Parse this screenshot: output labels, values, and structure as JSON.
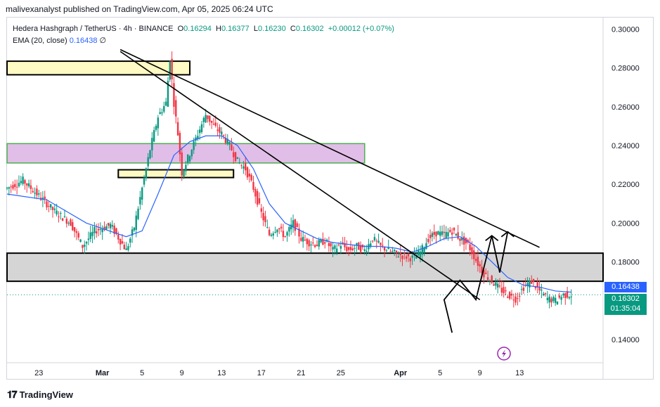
{
  "header": {
    "text": "malivexanalyst published on TradingView.com, Apr 05, 2025 06:24 UTC"
  },
  "legend": {
    "symbol": "Hedera Hashgraph / TetherUS · 4h · BINANCE",
    "open_label": "O",
    "open": "0.16294",
    "high_label": "H",
    "high": "0.16377",
    "low_label": "L",
    "low": "0.16230",
    "close_label": "C",
    "close": "0.16302",
    "change": "+0.00012 (+0.07%)",
    "ema_label": "EMA (20, close)",
    "ema_value": "0.16438",
    "ema_extra": "∅"
  },
  "price_tags": {
    "ema": "0.16438",
    "close": "0.16302",
    "countdown": "01:35:04"
  },
  "footer": {
    "brand": "TradingView"
  },
  "colors": {
    "up": "#089981",
    "down": "#f23645",
    "ema": "#2962ff",
    "axis": "#d1d4dc"
  },
  "chart_data": {
    "type": "candlestick",
    "y_ticks": [
      "0.30000",
      "0.28000",
      "0.26000",
      "0.24000",
      "0.22000",
      "0.20000",
      "0.18000",
      "0.14000"
    ],
    "x_ticks": [
      "23",
      "Mar",
      "5",
      "9",
      "13",
      "17",
      "21",
      "25",
      "Apr",
      "5",
      "9",
      "13"
    ],
    "ylim": [
      0.128,
      0.306
    ],
    "price_path": [
      [
        0,
        0.218
      ],
      [
        4,
        0.222
      ],
      [
        8,
        0.214
      ],
      [
        12,
        0.206
      ],
      [
        16,
        0.2
      ],
      [
        19,
        0.188
      ],
      [
        22,
        0.196
      ],
      [
        26,
        0.199
      ],
      [
        30,
        0.186
      ],
      [
        32,
        0.198
      ],
      [
        34,
        0.218
      ],
      [
        36,
        0.238
      ],
      [
        38,
        0.255
      ],
      [
        40,
        0.262
      ],
      [
        41,
        0.285
      ],
      [
        42,
        0.262
      ],
      [
        43,
        0.246
      ],
      [
        44,
        0.226
      ],
      [
        46,
        0.236
      ],
      [
        48,
        0.246
      ],
      [
        50,
        0.256
      ],
      [
        52,
        0.25
      ],
      [
        54,
        0.246
      ],
      [
        56,
        0.24
      ],
      [
        58,
        0.232
      ],
      [
        60,
        0.228
      ],
      [
        62,
        0.218
      ],
      [
        64,
        0.205
      ],
      [
        66,
        0.194
      ],
      [
        68,
        0.198
      ],
      [
        70,
        0.193
      ],
      [
        72,
        0.2
      ],
      [
        74,
        0.192
      ],
      [
        76,
        0.19
      ],
      [
        78,
        0.189
      ],
      [
        80,
        0.191
      ],
      [
        82,
        0.186
      ],
      [
        84,
        0.189
      ],
      [
        86,
        0.186
      ],
      [
        88,
        0.188
      ],
      [
        90,
        0.186
      ],
      [
        92,
        0.192
      ],
      [
        94,
        0.188
      ],
      [
        96,
        0.186
      ],
      [
        98,
        0.184
      ],
      [
        100,
        0.183
      ],
      [
        102,
        0.182
      ],
      [
        104,
        0.185
      ],
      [
        106,
        0.192
      ],
      [
        108,
        0.195
      ],
      [
        110,
        0.194
      ],
      [
        112,
        0.196
      ],
      [
        114,
        0.192
      ],
      [
        116,
        0.189
      ],
      [
        118,
        0.181
      ],
      [
        120,
        0.174
      ],
      [
        122,
        0.17
      ],
      [
        124,
        0.166
      ],
      [
        126,
        0.163
      ],
      [
        128,
        0.161
      ],
      [
        130,
        0.167
      ],
      [
        132,
        0.17
      ],
      [
        134,
        0.165
      ],
      [
        136,
        0.161
      ],
      [
        138,
        0.16
      ],
      [
        140,
        0.163
      ],
      [
        142,
        0.163
      ]
    ],
    "ema_path": [
      [
        0,
        0.215
      ],
      [
        10,
        0.212
      ],
      [
        20,
        0.2
      ],
      [
        30,
        0.193
      ],
      [
        34,
        0.196
      ],
      [
        38,
        0.215
      ],
      [
        42,
        0.235
      ],
      [
        46,
        0.242
      ],
      [
        50,
        0.245
      ],
      [
        54,
        0.245
      ],
      [
        58,
        0.24
      ],
      [
        62,
        0.228
      ],
      [
        66,
        0.21
      ],
      [
        70,
        0.2
      ],
      [
        74,
        0.196
      ],
      [
        78,
        0.192
      ],
      [
        82,
        0.19
      ],
      [
        86,
        0.189
      ],
      [
        90,
        0.188
      ],
      [
        94,
        0.188
      ],
      [
        98,
        0.187
      ],
      [
        102,
        0.185
      ],
      [
        106,
        0.188
      ],
      [
        110,
        0.192
      ],
      [
        114,
        0.193
      ],
      [
        118,
        0.188
      ],
      [
        122,
        0.18
      ],
      [
        126,
        0.172
      ],
      [
        130,
        0.168
      ],
      [
        134,
        0.167
      ],
      [
        138,
        0.165
      ],
      [
        142,
        0.1644
      ]
    ],
    "zones": [
      {
        "name": "yellow-zone-top",
        "x": [
          0,
          46
        ],
        "y": [
          0.2765,
          0.2835
        ],
        "color": "#fff9c4",
        "border": "#000000"
      },
      {
        "name": "pink-zone",
        "x": [
          0,
          90
        ],
        "y": [
          0.231,
          0.241
        ],
        "color": "#e1bee7",
        "border": "#4caf50"
      },
      {
        "name": "yellow-zone-mid",
        "x": [
          28,
          57
        ],
        "y": [
          0.2235,
          0.2275
        ],
        "color": "#fff9c4",
        "border": "#000000"
      },
      {
        "name": "gray-zone",
        "x": [
          0,
          150
        ],
        "y": [
          0.17,
          0.1845
        ],
        "color": "#d5d5d5",
        "border": "#000000"
      }
    ],
    "trendlines": [
      {
        "name": "upper-trendline",
        "from": [
          28.5,
          0.2895
        ],
        "to": [
          134,
          0.1875
        ]
      },
      {
        "name": "lower-trendline",
        "from": [
          28.5,
          0.2885
        ],
        "to": [
          119,
          0.1605
        ]
      },
      {
        "name": "projection-path",
        "points": [
          [
            110,
            0.1605
          ],
          [
            114,
            0.1705
          ],
          [
            118,
            0.1605
          ],
          [
            122,
            0.1935
          ],
          [
            124,
            0.1745
          ],
          [
            126,
            0.1955
          ]
        ],
        "start": [
          112,
          0.1435
        ]
      }
    ]
  }
}
